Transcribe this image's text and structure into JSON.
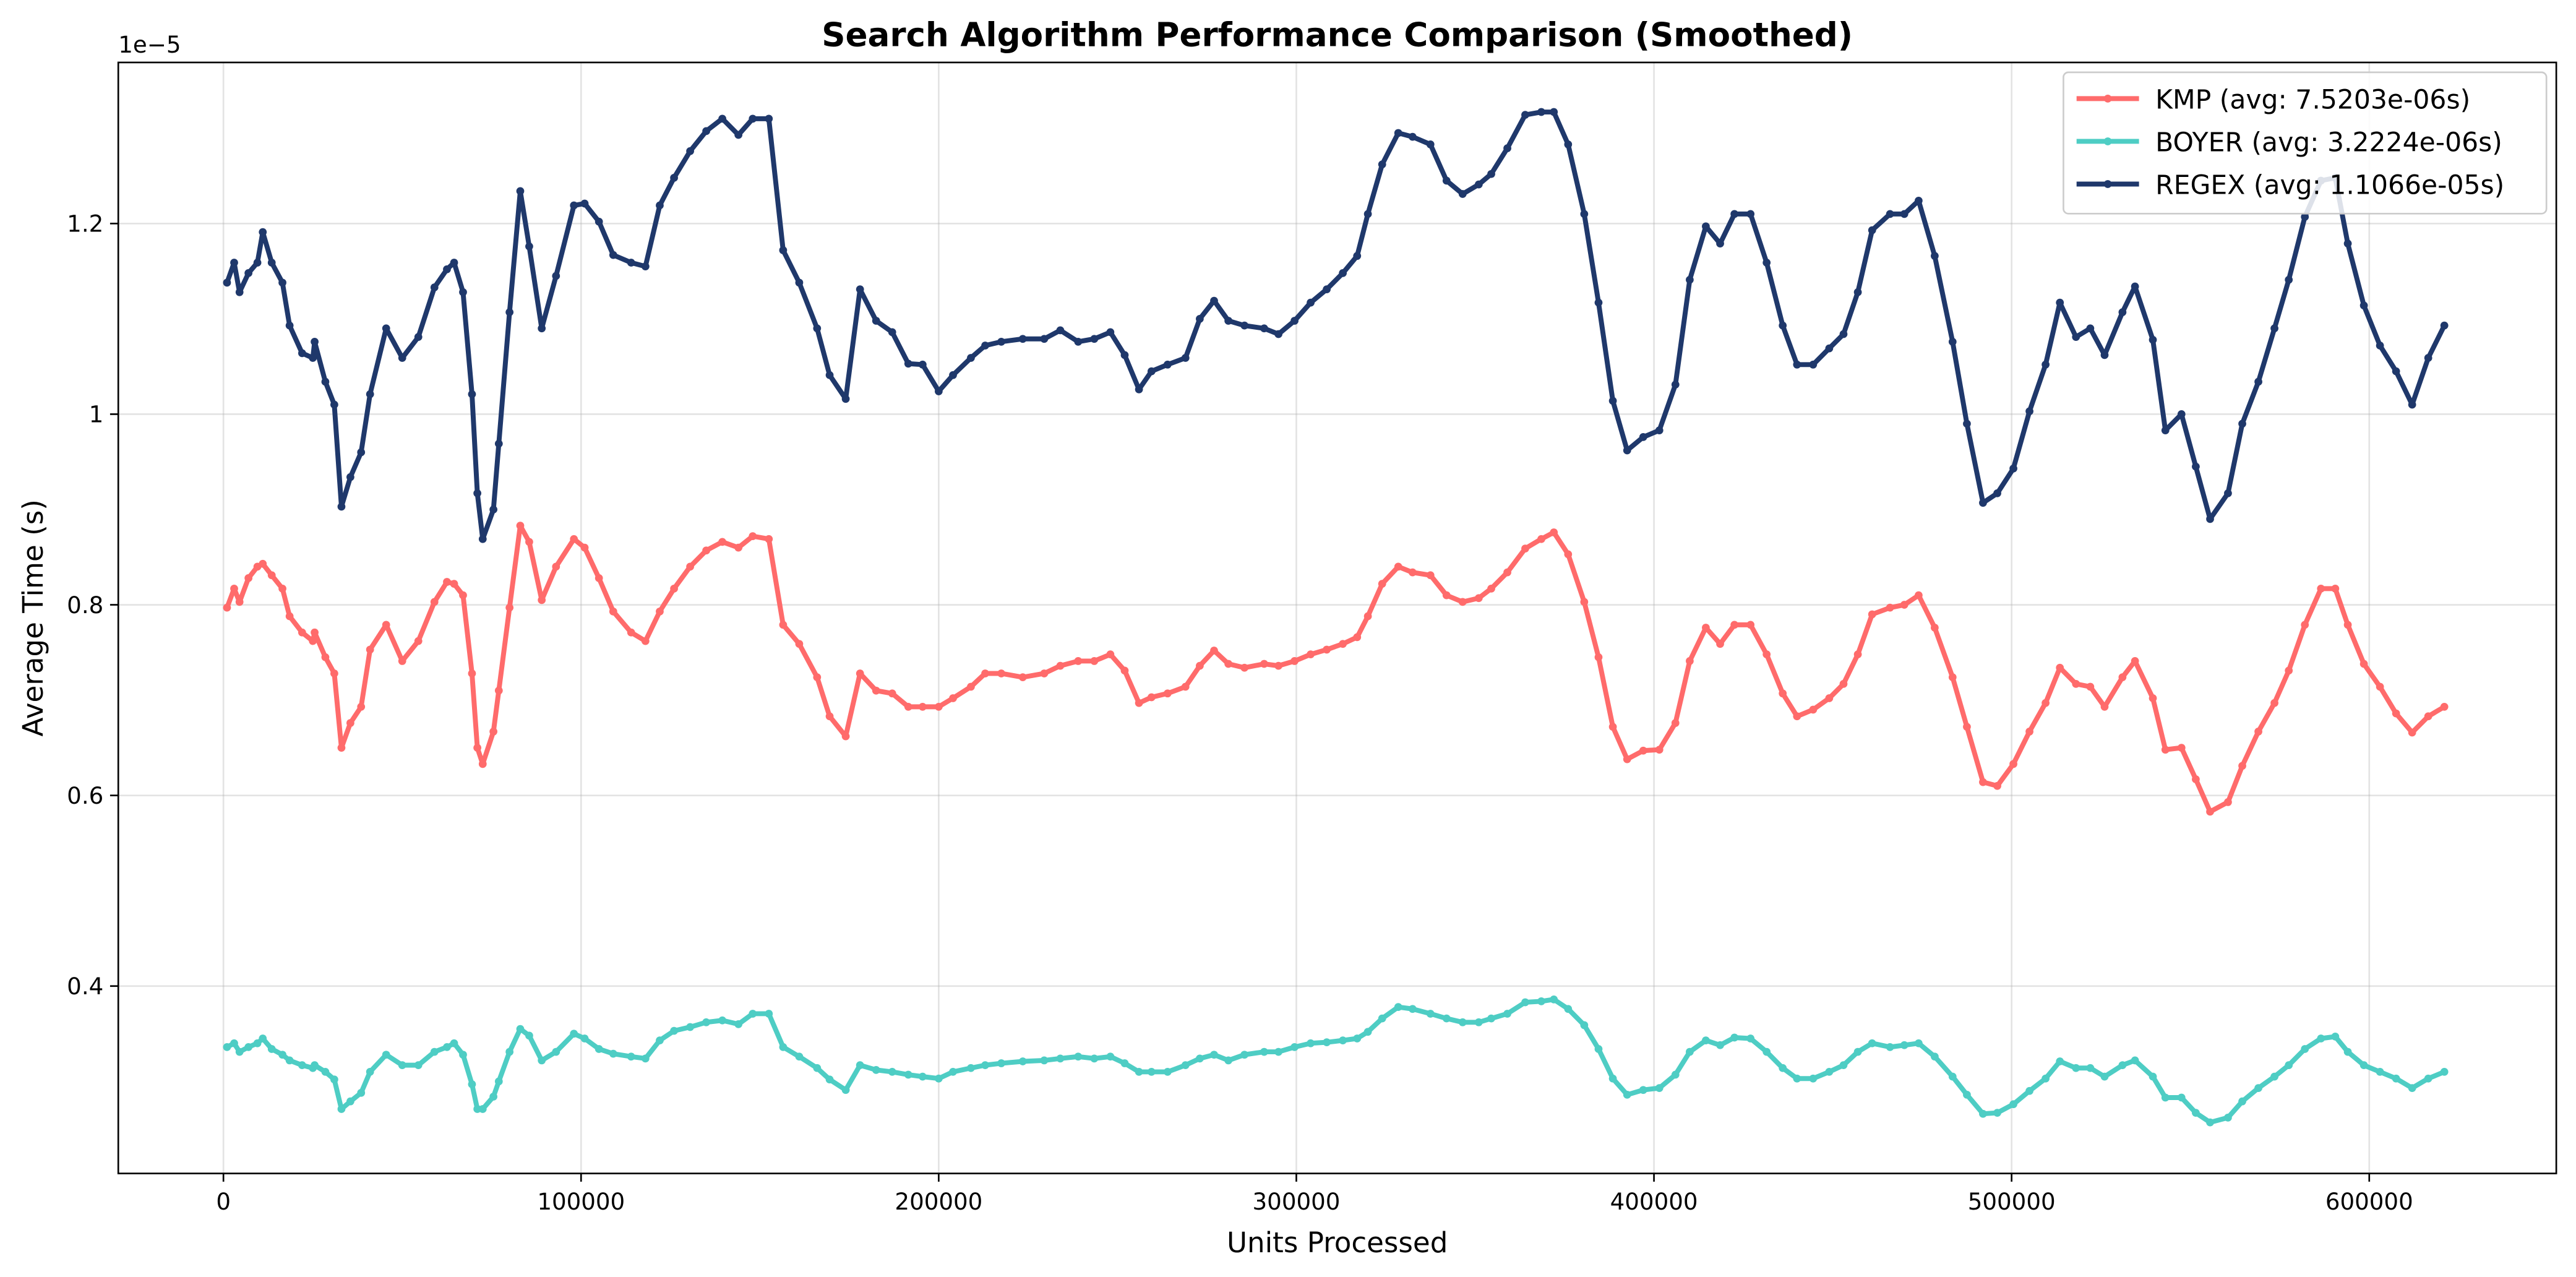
{
  "chart_data": {
    "type": "line",
    "title": "Search Algorithm Performance Comparison (Smoothed)",
    "x_label": "Units Processed",
    "y_label": "Average Time (s)",
    "y_offset_text": "1e−5",
    "xlim": [
      -29400,
      652300
    ],
    "ylim": [
      0.2034,
      1.369
    ],
    "xticks": [
      0,
      100000,
      200000,
      300000,
      400000,
      500000,
      600000
    ],
    "yticks": [
      0.4,
      0.6,
      0.8,
      1.0,
      1.2
    ],
    "grid": true,
    "legend": "upper right",
    "markers": true,
    "x": [
      1000,
      3000,
      4500,
      7000,
      9500,
      11000,
      13500,
      16500,
      18500,
      22000,
      25000,
      25500,
      28500,
      31000,
      33000,
      35500,
      38500,
      41000,
      45500,
      50000,
      54500,
      59000,
      62500,
      64500,
      67000,
      69500,
      71000,
      72500,
      75500,
      77000,
      80000,
      83000,
      85500,
      89000,
      93000,
      98000,
      101000,
      105000,
      109000,
      114000,
      118000,
      122000,
      126000,
      130500,
      135000,
      139500,
      144000,
      148000,
      152500,
      156500,
      161000,
      166000,
      169500,
      174000,
      178000,
      182500,
      187000,
      191500,
      195500,
      200000,
      204000,
      209000,
      213000,
      217500,
      223500,
      229500,
      234000,
      239000,
      243500,
      248000,
      252000,
      256000,
      259500,
      264000,
      269000,
      273000,
      277000,
      281000,
      285500,
      291000,
      295000,
      299500,
      304000,
      308500,
      313000,
      317000,
      320000,
      324000,
      328500,
      332500,
      337500,
      342000,
      346500,
      351000,
      354500,
      359000,
      364000,
      368500,
      372000,
      376000,
      380500,
      384500,
      388500,
      392500,
      397000,
      401500,
      406000,
      410000,
      414500,
      418500,
      422500,
      427000,
      431500,
      436000,
      440000,
      444500,
      449000,
      453000,
      457000,
      461000,
      466000,
      470000,
      474000,
      478500,
      483500,
      487500,
      492000,
      496000,
      500500,
      505000,
      509500,
      513500,
      518000,
      522000,
      526000,
      531000,
      534500,
      539500,
      543000,
      547500,
      551500,
      555500,
      560500,
      564500,
      569000,
      573500,
      577500,
      582000,
      586500,
      590500,
      594000,
      598500,
      603000,
      607500,
      612000,
      616500,
      621000
    ],
    "series": [
      {
        "name": "KMP (avg: 7.5203e-06s)",
        "color": "#ff6b6b",
        "values": [
          0.797,
          0.817,
          0.803,
          0.828,
          0.84,
          0.843,
          0.831,
          0.817,
          0.788,
          0.771,
          0.762,
          0.771,
          0.745,
          0.728,
          0.65,
          0.676,
          0.693,
          0.753,
          0.779,
          0.741,
          0.762,
          0.803,
          0.824,
          0.822,
          0.81,
          0.728,
          0.65,
          0.633,
          0.667,
          0.71,
          0.797,
          0.883,
          0.866,
          0.805,
          0.84,
          0.869,
          0.86,
          0.828,
          0.793,
          0.771,
          0.762,
          0.793,
          0.817,
          0.84,
          0.857,
          0.866,
          0.86,
          0.872,
          0.869,
          0.779,
          0.759,
          0.724,
          0.683,
          0.662,
          0.728,
          0.71,
          0.707,
          0.693,
          0.693,
          0.693,
          0.702,
          0.714,
          0.728,
          0.728,
          0.724,
          0.728,
          0.736,
          0.741,
          0.741,
          0.748,
          0.731,
          0.697,
          0.703,
          0.707,
          0.714,
          0.736,
          0.752,
          0.738,
          0.734,
          0.738,
          0.736,
          0.741,
          0.748,
          0.753,
          0.759,
          0.766,
          0.788,
          0.822,
          0.84,
          0.834,
          0.831,
          0.81,
          0.803,
          0.807,
          0.817,
          0.834,
          0.859,
          0.869,
          0.876,
          0.853,
          0.803,
          0.745,
          0.672,
          0.638,
          0.647,
          0.648,
          0.676,
          0.741,
          0.776,
          0.759,
          0.779,
          0.779,
          0.748,
          0.707,
          0.683,
          0.69,
          0.702,
          0.717,
          0.748,
          0.79,
          0.797,
          0.8,
          0.81,
          0.776,
          0.724,
          0.672,
          0.614,
          0.61,
          0.633,
          0.667,
          0.697,
          0.734,
          0.717,
          0.714,
          0.693,
          0.724,
          0.741,
          0.702,
          0.648,
          0.65,
          0.617,
          0.583,
          0.593,
          0.631,
          0.667,
          0.697,
          0.731,
          0.779,
          0.817,
          0.817,
          0.779,
          0.738,
          0.714,
          0.686,
          0.666,
          0.683,
          0.693
        ]
      },
      {
        "name": "BOYER (avg: 3.2224e-06s)",
        "color": "#4ecdc4",
        "values": [
          0.336,
          0.34,
          0.331,
          0.336,
          0.34,
          0.345,
          0.334,
          0.328,
          0.322,
          0.317,
          0.314,
          0.317,
          0.31,
          0.302,
          0.271,
          0.279,
          0.288,
          0.31,
          0.328,
          0.317,
          0.317,
          0.331,
          0.336,
          0.34,
          0.328,
          0.297,
          0.271,
          0.271,
          0.284,
          0.3,
          0.331,
          0.355,
          0.348,
          0.322,
          0.331,
          0.35,
          0.345,
          0.334,
          0.329,
          0.326,
          0.324,
          0.343,
          0.353,
          0.357,
          0.362,
          0.364,
          0.36,
          0.371,
          0.371,
          0.336,
          0.326,
          0.314,
          0.302,
          0.291,
          0.317,
          0.312,
          0.31,
          0.307,
          0.305,
          0.303,
          0.31,
          0.314,
          0.317,
          0.319,
          0.321,
          0.322,
          0.324,
          0.326,
          0.324,
          0.326,
          0.319,
          0.31,
          0.31,
          0.31,
          0.317,
          0.324,
          0.328,
          0.322,
          0.328,
          0.331,
          0.331,
          0.336,
          0.34,
          0.341,
          0.343,
          0.345,
          0.352,
          0.366,
          0.378,
          0.376,
          0.371,
          0.366,
          0.362,
          0.362,
          0.366,
          0.371,
          0.383,
          0.384,
          0.386,
          0.376,
          0.359,
          0.334,
          0.303,
          0.286,
          0.291,
          0.293,
          0.307,
          0.331,
          0.343,
          0.338,
          0.346,
          0.345,
          0.331,
          0.314,
          0.303,
          0.303,
          0.31,
          0.317,
          0.331,
          0.34,
          0.336,
          0.338,
          0.34,
          0.326,
          0.305,
          0.286,
          0.266,
          0.267,
          0.276,
          0.29,
          0.303,
          0.321,
          0.314,
          0.314,
          0.305,
          0.317,
          0.322,
          0.305,
          0.283,
          0.283,
          0.267,
          0.257,
          0.262,
          0.279,
          0.293,
          0.305,
          0.317,
          0.334,
          0.345,
          0.347,
          0.331,
          0.317,
          0.31,
          0.303,
          0.293,
          0.303,
          0.31
        ]
      },
      {
        "name": "REGEX (avg: 1.1066e-05s)",
        "color": "#1f386b",
        "values": [
          1.138,
          1.159,
          1.128,
          1.148,
          1.159,
          1.191,
          1.159,
          1.138,
          1.093,
          1.064,
          1.059,
          1.076,
          1.034,
          1.01,
          0.903,
          0.934,
          0.96,
          1.021,
          1.09,
          1.059,
          1.081,
          1.133,
          1.152,
          1.159,
          1.128,
          1.021,
          0.917,
          0.869,
          0.9,
          0.969,
          1.107,
          1.234,
          1.176,
          1.09,
          1.145,
          1.219,
          1.221,
          1.202,
          1.167,
          1.159,
          1.155,
          1.219,
          1.248,
          1.276,
          1.297,
          1.31,
          1.293,
          1.31,
          1.31,
          1.172,
          1.138,
          1.09,
          1.041,
          1.016,
          1.131,
          1.098,
          1.086,
          1.053,
          1.052,
          1.024,
          1.041,
          1.059,
          1.072,
          1.076,
          1.079,
          1.079,
          1.088,
          1.076,
          1.079,
          1.086,
          1.062,
          1.026,
          1.045,
          1.052,
          1.059,
          1.1,
          1.119,
          1.098,
          1.093,
          1.09,
          1.084,
          1.098,
          1.117,
          1.131,
          1.148,
          1.166,
          1.21,
          1.262,
          1.295,
          1.291,
          1.283,
          1.245,
          1.231,
          1.241,
          1.252,
          1.279,
          1.314,
          1.317,
          1.317,
          1.283,
          1.21,
          1.117,
          1.014,
          0.962,
          0.976,
          0.983,
          1.031,
          1.141,
          1.197,
          1.179,
          1.21,
          1.21,
          1.159,
          1.093,
          1.052,
          1.052,
          1.069,
          1.084,
          1.128,
          1.193,
          1.21,
          1.21,
          1.224,
          1.166,
          1.076,
          0.99,
          0.907,
          0.917,
          0.943,
          1.003,
          1.052,
          1.117,
          1.081,
          1.09,
          1.062,
          1.107,
          1.134,
          1.078,
          0.983,
          1.0,
          0.945,
          0.89,
          0.917,
          0.99,
          1.034,
          1.09,
          1.141,
          1.207,
          1.245,
          1.248,
          1.179,
          1.114,
          1.072,
          1.045,
          1.01,
          1.059,
          1.093
        ]
      }
    ]
  }
}
